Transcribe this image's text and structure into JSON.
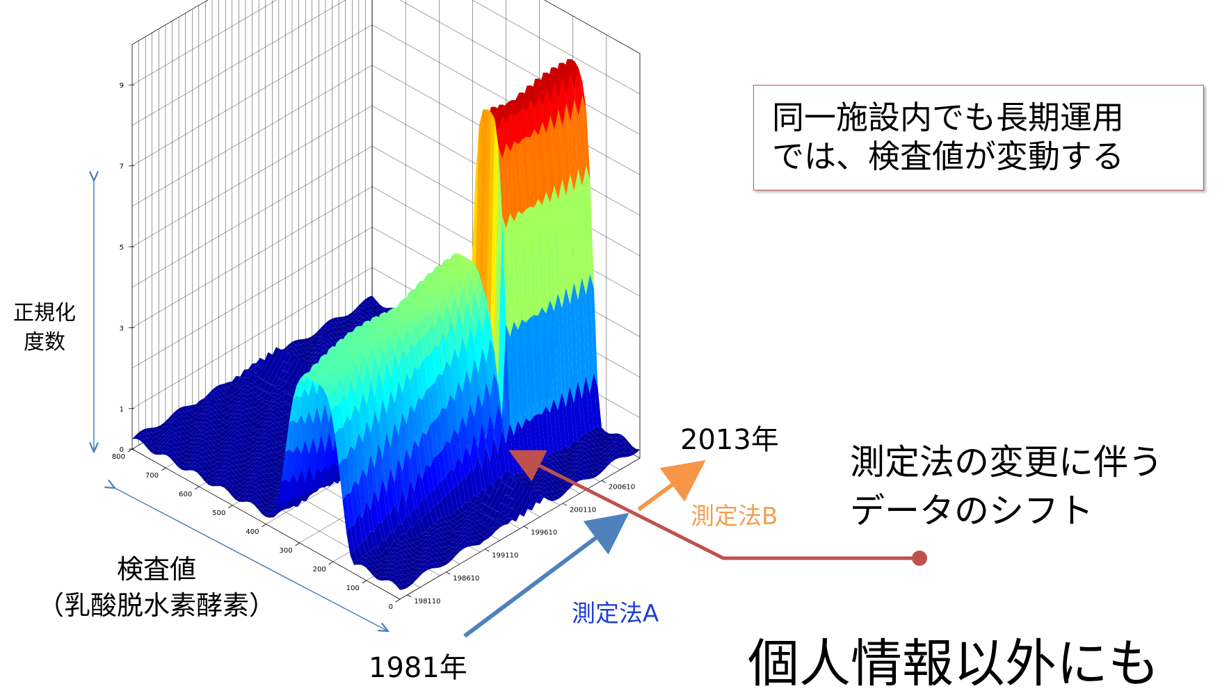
{
  "chart_data": {
    "type": "surface",
    "z_axis": {
      "label_lines": [
        "正規化",
        "度数"
      ],
      "ticks": [
        "0",
        "1",
        "3",
        "5",
        "7",
        "9"
      ]
    },
    "x_axis": {
      "label_lines": [
        "検査値",
        "（乳酸脱水素酵素）"
      ],
      "ticks": [
        "0",
        "100",
        "200",
        "300",
        "400",
        "500",
        "600",
        "700",
        "800"
      ]
    },
    "y_axis": {
      "ticks": [
        "198110",
        "198610",
        "199110",
        "199610",
        "200110",
        "200610"
      ],
      "start_label": "1981年",
      "end_label": "2013年"
    },
    "colormap": "jet",
    "colors": {
      "arrow_axis": "#4a7ebb",
      "method_a": "#1f3fd6",
      "method_b": "#f0a050",
      "arrow_a": "#4f81bd",
      "arrow_b": "#f79646",
      "shift_line": "#c0504d",
      "box_border": "#c0504d"
    }
  },
  "annotations": {
    "note_lines": [
      "同一施設内でも長期運用",
      "では、検査値が変動する"
    ],
    "method_a": "測定法A",
    "method_b": "測定法B",
    "shift_lines": [
      "測定法の変更に伴う",
      "データのシフト"
    ],
    "footer": "個人情報以外にも"
  }
}
